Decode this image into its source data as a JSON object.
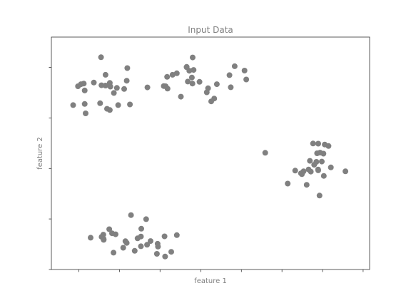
{
  "chart_data": {
    "type": "scatter",
    "title": "Input Data",
    "xlabel": "feature 1",
    "ylabel": "feature 2",
    "xlim": [
      -11.2,
      5.9
    ],
    "ylim": [
      -10.0,
      3.8
    ],
    "xticks": [
      -9.72,
      -7.54,
      -5.36,
      -3.17,
      -0.99,
      1.19,
      3.37,
      5.55
    ],
    "yticks": [
      -10,
      -7,
      -4,
      -1,
      2
    ],
    "show_tick_labels": false,
    "grid": false,
    "legend": "none",
    "marker_color": "#808080",
    "points": [
      {
        "x": -7.12,
        "y": 1.96
      },
      {
        "x": -9.61,
        "y": 1.0
      },
      {
        "x": -9.77,
        "y": 0.88
      },
      {
        "x": -9.46,
        "y": 1.04
      },
      {
        "x": -8.92,
        "y": 1.1
      },
      {
        "x": -8.29,
        "y": 1.56
      },
      {
        "x": -8.51,
        "y": 0.94
      },
      {
        "x": -8.03,
        "y": 0.86
      },
      {
        "x": -7.68,
        "y": 0.78
      },
      {
        "x": -7.15,
        "y": 1.21
      },
      {
        "x": -9.41,
        "y": 0.63
      },
      {
        "x": -8.29,
        "y": 0.92
      },
      {
        "x": -8.06,
        "y": 1.08
      },
      {
        "x": -7.84,
        "y": 0.48
      },
      {
        "x": -7.29,
        "y": 0.72
      },
      {
        "x": -8.53,
        "y": 2.6
      },
      {
        "x": -10.03,
        "y": -0.24
      },
      {
        "x": -9.41,
        "y": -0.17
      },
      {
        "x": -8.58,
        "y": -0.13
      },
      {
        "x": -8.21,
        "y": -0.46
      },
      {
        "x": -8.06,
        "y": -0.53
      },
      {
        "x": -7.61,
        "y": -0.24
      },
      {
        "x": -6.98,
        "y": -0.2
      },
      {
        "x": -9.36,
        "y": -0.73
      },
      {
        "x": -6.04,
        "y": 0.81
      },
      {
        "x": -4.98,
        "y": 1.44
      },
      {
        "x": -5.16,
        "y": 0.89
      },
      {
        "x": -5.06,
        "y": 0.88
      },
      {
        "x": -4.24,
        "y": 0.26
      },
      {
        "x": -4.96,
        "y": 0.74
      },
      {
        "x": -4.69,
        "y": 1.56
      },
      {
        "x": -4.46,
        "y": 1.65
      },
      {
        "x": -3.93,
        "y": 2.01
      },
      {
        "x": -3.93,
        "y": 2.03
      },
      {
        "x": -3.79,
        "y": 1.8
      },
      {
        "x": -3.65,
        "y": 1.4
      },
      {
        "x": -3.56,
        "y": 1.85
      },
      {
        "x": -3.87,
        "y": 1.16
      },
      {
        "x": -3.62,
        "y": 1.04
      },
      {
        "x": -3.24,
        "y": 1.14
      },
      {
        "x": -2.85,
        "y": 0.52
      },
      {
        "x": -2.78,
        "y": 0.76
      },
      {
        "x": -2.61,
        "y": -0.02
      },
      {
        "x": -2.45,
        "y": 0.15
      },
      {
        "x": -2.31,
        "y": 1.0
      },
      {
        "x": -1.63,
        "y": 1.54
      },
      {
        "x": -1.56,
        "y": 0.82
      },
      {
        "x": -1.35,
        "y": 2.07
      },
      {
        "x": -0.82,
        "y": 1.81
      },
      {
        "x": -0.73,
        "y": 1.28
      },
      {
        "x": -3.61,
        "y": 2.59
      },
      {
        "x": 0.29,
        "y": -3.07
      },
      {
        "x": 1.9,
        "y": -4.13
      },
      {
        "x": 2.35,
        "y": -4.17
      },
      {
        "x": 2.26,
        "y": -4.34
      },
      {
        "x": 2.62,
        "y": -4.06
      },
      {
        "x": 2.74,
        "y": -4.19
      },
      {
        "x": 2.92,
        "y": -3.78
      },
      {
        "x": 3.04,
        "y": -3.61
      },
      {
        "x": 3.14,
        "y": -2.53
      },
      {
        "x": 3.08,
        "y": -3.1
      },
      {
        "x": 3.24,
        "y": -3.06
      },
      {
        "x": 3.42,
        "y": -3.12
      },
      {
        "x": 3.69,
        "y": -2.67
      },
      {
        "x": 2.86,
        "y": -2.52
      },
      {
        "x": 3.49,
        "y": -2.58
      },
      {
        "x": 3.33,
        "y": -3.59
      },
      {
        "x": 3.14,
        "y": -4.11
      },
      {
        "x": 3.44,
        "y": -4.44
      },
      {
        "x": 3.13,
        "y": -4.06
      },
      {
        "x": 2.69,
        "y": -3.55
      },
      {
        "x": 2.21,
        "y": -4.29
      },
      {
        "x": 2.52,
        "y": -4.97
      },
      {
        "x": 1.5,
        "y": -4.9
      },
      {
        "x": 3.21,
        "y": -5.61
      },
      {
        "x": 4.6,
        "y": -4.17
      },
      {
        "x": 3.82,
        "y": -3.94
      },
      {
        "x": -8.09,
        "y": -7.61
      },
      {
        "x": -6.92,
        "y": -6.77
      },
      {
        "x": -6.11,
        "y": -7.01
      },
      {
        "x": -6.57,
        "y": -8.15
      },
      {
        "x": -6.39,
        "y": -8.62
      },
      {
        "x": -7.22,
        "y": -8.32
      },
      {
        "x": -6.39,
        "y": -8.04
      },
      {
        "x": -6.37,
        "y": -7.58
      },
      {
        "x": -6.06,
        "y": -8.53
      },
      {
        "x": -5.49,
        "y": -8.47
      },
      {
        "x": -5.47,
        "y": -8.64
      },
      {
        "x": -5.87,
        "y": -8.31
      },
      {
        "x": -5.12,
        "y": -8.03
      },
      {
        "x": -7.15,
        "y": -8.42
      },
      {
        "x": -7.34,
        "y": -8.71
      },
      {
        "x": -8.5,
        "y": -8.06
      },
      {
        "x": -8.39,
        "y": -8.19
      },
      {
        "x": -9.09,
        "y": -8.11
      },
      {
        "x": -8.39,
        "y": -8.24
      },
      {
        "x": -8.41,
        "y": -7.93
      },
      {
        "x": -7.75,
        "y": -7.91
      },
      {
        "x": -7.94,
        "y": -7.85
      },
      {
        "x": -6.72,
        "y": -8.89
      },
      {
        "x": -7.86,
        "y": -9.0
      },
      {
        "x": -4.76,
        "y": -8.95
      },
      {
        "x": -4.46,
        "y": -7.96
      },
      {
        "x": -5.53,
        "y": -9.07
      },
      {
        "x": -5.09,
        "y": -9.23
      }
    ]
  }
}
